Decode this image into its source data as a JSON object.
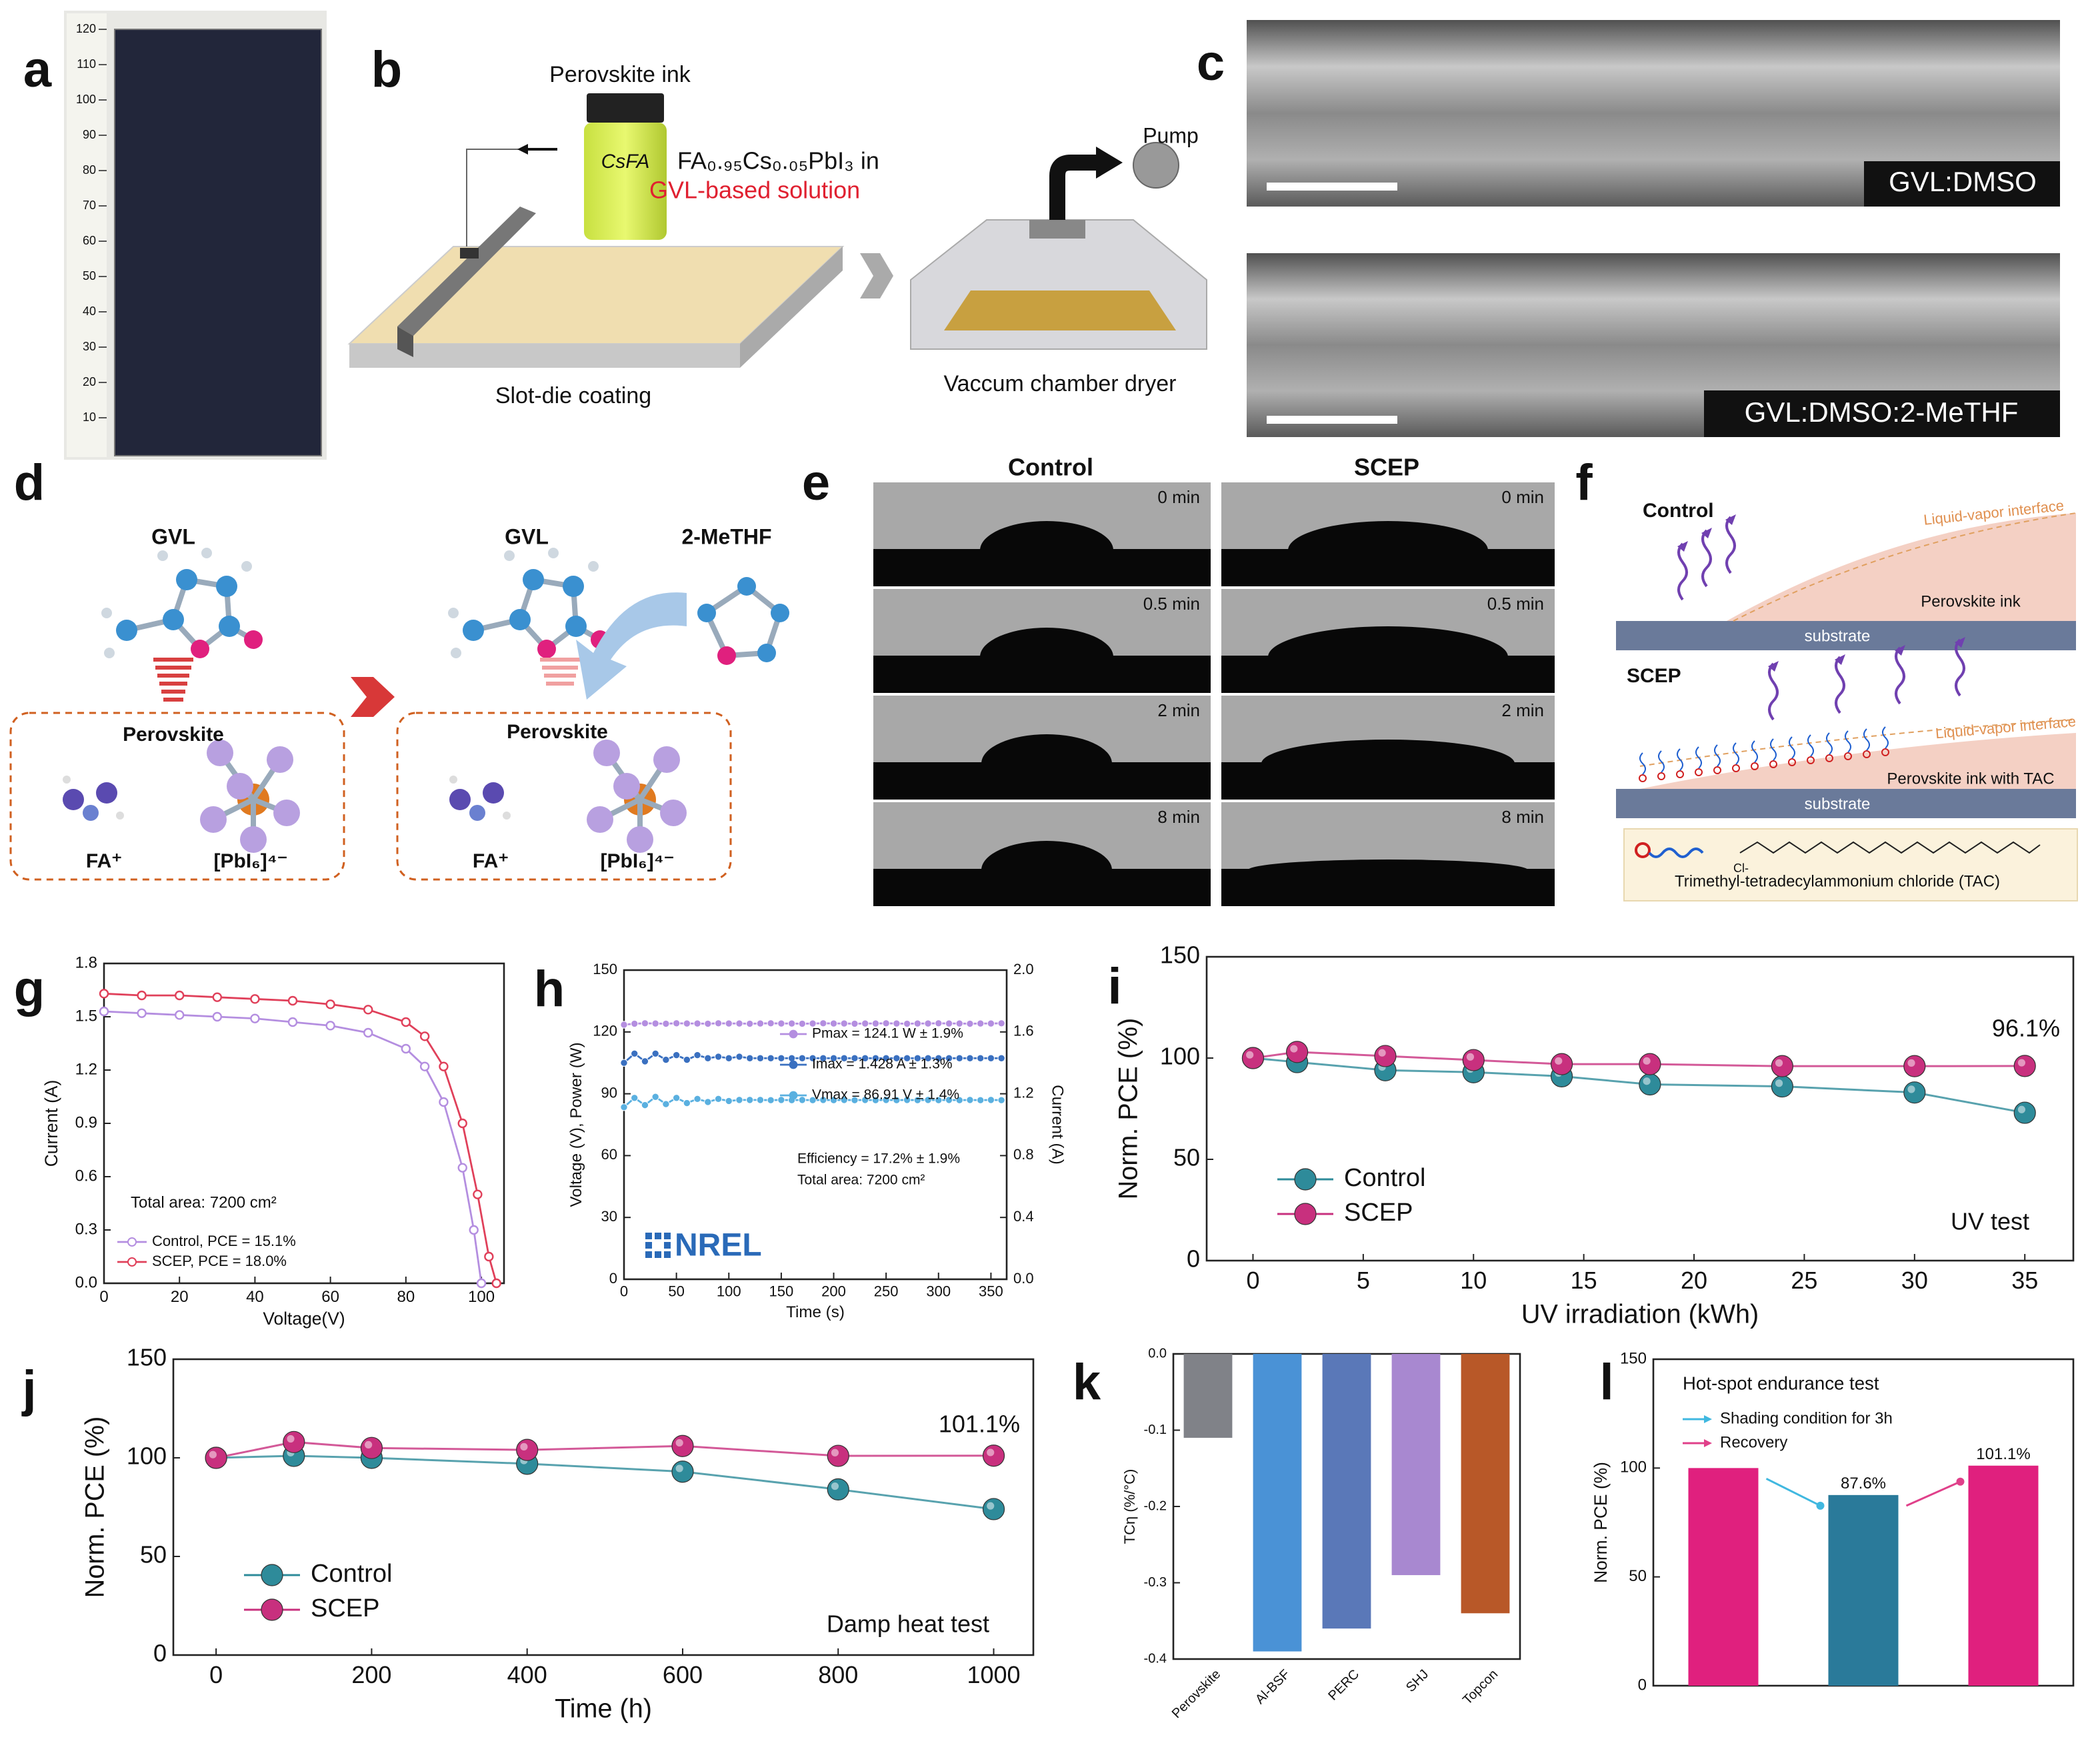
{
  "panel_labels": [
    "a",
    "b",
    "c",
    "d",
    "e",
    "f",
    "g",
    "h",
    "i",
    "j",
    "k",
    "l"
  ],
  "panel_a": {
    "ruler": [
      120,
      110,
      100,
      90,
      80,
      70,
      60,
      50,
      40,
      30,
      20,
      10
    ]
  },
  "panel_b": {
    "ink": "Perovskite ink",
    "vial": "CsFA",
    "formula": "FA₀.₉₅Cs₀.₀₅PbI₃ in",
    "solution": "GVL-based solution",
    "pump": "Pump",
    "coating": "Slot-die coating",
    "dryer": "Vaccum chamber dryer"
  },
  "panel_c": {
    "top": "GVL:DMSO",
    "bottom": "GVL:DMSO:2-MeTHF"
  },
  "panel_d": {
    "left_solvent": "GVL",
    "right_solvent": "GVL",
    "additive": "2-MeTHF",
    "box_title": "Perovskite",
    "cation": "FA⁺",
    "anion": "[PbI₆]⁴⁻"
  },
  "panel_e": {
    "columns": [
      "Control",
      "SCEP"
    ],
    "times": [
      "0 min",
      "0.5 min",
      "2 min",
      "8 min"
    ]
  },
  "panel_f": {
    "control": "Control",
    "scep": "SCEP",
    "interface": "Liquid-vapor interface",
    "ink": "Perovskite ink",
    "ink_tac": "Perovskite ink with TAC",
    "substrate": "substrate",
    "chloride": "Cl-",
    "tac": "Trimethyl-tetradecylammonium chloride (TAC)"
  },
  "chart_data": [
    {
      "type": "line",
      "xlabel": "Voltage(V)",
      "ylabel": "Current (A)",
      "xlim": [
        0,
        106
      ],
      "xticks": [
        0,
        20,
        40,
        60,
        80,
        100
      ],
      "ylim": [
        0,
        1.8
      ],
      "yticks": [
        {
          "value": 0,
          "label": "0.0"
        },
        0.3,
        0.6,
        0.9,
        1.2,
        1.5,
        1.8
      ],
      "annotation": "Total area: 7200 cm²",
      "markers": "hollow",
      "series": [
        {
          "name": "Control, PCE = 15.1%",
          "color": "#b48ee0",
          "x": [
            0,
            10,
            20,
            30,
            40,
            50,
            60,
            70,
            80,
            85,
            90,
            95,
            98,
            100
          ],
          "values": [
            1.53,
            1.52,
            1.51,
            1.5,
            1.49,
            1.47,
            1.45,
            1.41,
            1.32,
            1.22,
            1.02,
            0.65,
            0.3,
            0
          ]
        },
        {
          "name": "SCEP, PCE = 18.0%",
          "color": "#e0405a",
          "x": [
            0,
            10,
            20,
            30,
            40,
            50,
            60,
            70,
            80,
            85,
            90,
            95,
            99,
            102,
            104
          ],
          "values": [
            1.63,
            1.62,
            1.62,
            1.61,
            1.6,
            1.59,
            1.57,
            1.54,
            1.47,
            1.39,
            1.22,
            0.9,
            0.5,
            0.15,
            0
          ]
        }
      ]
    },
    {
      "type": "line",
      "xlabel": "Time (s)",
      "ylabel": "Voltage (V), Power (W)",
      "y2label": "Current (A)",
      "x": [
        0,
        10,
        20,
        30,
        40,
        50,
        60,
        70,
        80,
        90,
        100,
        110,
        120,
        130,
        140,
        150,
        160,
        170,
        180,
        190,
        200,
        210,
        220,
        230,
        240,
        250,
        260,
        270,
        280,
        290,
        300,
        310,
        320,
        330,
        340,
        350,
        360
      ],
      "xlim": [
        0,
        365
      ],
      "xticks": [
        0,
        50,
        100,
        150,
        200,
        250,
        300,
        350
      ],
      "ylim": [
        0,
        150
      ],
      "yticks": [
        0,
        30,
        60,
        90,
        120,
        150
      ],
      "y2lim": [
        0,
        2
      ],
      "y2ticks": [
        {
          "value": 0,
          "label": "0.0"
        },
        0.4,
        0.8,
        1.2,
        1.6,
        {
          "value": 2,
          "label": "2.0"
        }
      ],
      "annotations": [
        "Efficiency = 17.2%  ± 1.9%",
        "Total area: 7200 cm²"
      ],
      "logo": "NREL",
      "series": [
        {
          "name": "Pmax = 124.1 W  ± 1.9%",
          "color": "#b48ee0",
          "values": [
            123.5,
            124.0,
            124.2,
            124.1,
            124.0,
            124.2,
            124.1,
            124.1,
            124.0,
            124.2,
            124.1,
            124.1,
            124.0,
            124.1,
            124.2,
            124.1,
            124.1,
            124.0,
            124.1,
            124.2,
            124.1,
            124.1,
            124.0,
            124.1,
            124.1,
            124.2,
            124.1,
            124.0,
            124.1,
            124.1,
            124.2,
            124.1,
            124.1,
            124.0,
            124.1,
            124.1,
            124.2
          ]
        },
        {
          "name": "Imax = 1.428 A  ± 1.3%",
          "color": "#3a70c0",
          "axis": "y2",
          "values": [
            1.4,
            1.46,
            1.41,
            1.46,
            1.42,
            1.45,
            1.42,
            1.45,
            1.43,
            1.44,
            1.43,
            1.44,
            1.43,
            1.43,
            1.43,
            1.43,
            1.43,
            1.43,
            1.43,
            1.43,
            1.43,
            1.43,
            1.43,
            1.43,
            1.43,
            1.43,
            1.43,
            1.43,
            1.43,
            1.43,
            1.43,
            1.43,
            1.43,
            1.43,
            1.43,
            1.43,
            1.43
          ]
        },
        {
          "name": "Vmax = 86.91 V  ± 1.4%",
          "color": "#5ab0e0",
          "values": [
            83.5,
            88.0,
            84.5,
            88.5,
            85.0,
            88.0,
            85.5,
            87.5,
            86.0,
            87.5,
            86.5,
            87.0,
            87.0,
            87.0,
            86.9,
            87.0,
            86.9,
            87.0,
            86.9,
            87.0,
            86.9,
            87.0,
            86.9,
            87.0,
            86.9,
            87.0,
            86.9,
            87.0,
            86.9,
            87.0,
            86.9,
            87.0,
            86.9,
            87.0,
            86.9,
            87.0,
            86.9
          ]
        }
      ]
    },
    {
      "type": "line",
      "xlabel": "UV irradiation (kWh)",
      "ylabel": "Norm. PCE (%)",
      "x": [
        0,
        2,
        6,
        10,
        14,
        18,
        24,
        30,
        35
      ],
      "xlim": [
        -2.1,
        37.2
      ],
      "xticks": [
        0,
        5,
        10,
        15,
        20,
        25,
        30,
        35
      ],
      "ylim": [
        0,
        150
      ],
      "yticks": [
        0,
        50,
        100,
        150
      ],
      "markers": "sphere",
      "end_label": "96.1%",
      "test_label": "UV test",
      "series": [
        {
          "name": "Control",
          "color": "#2e8b9a",
          "values": [
            100,
            98,
            94,
            93,
            91,
            87,
            86,
            83,
            73
          ]
        },
        {
          "name": "SCEP",
          "color": "#c8307e",
          "values": [
            100,
            103,
            101,
            99,
            97,
            97,
            96,
            96,
            96.1
          ]
        }
      ]
    },
    {
      "type": "line",
      "xlabel": "Time (h)",
      "ylabel": "Norm. PCE (%)",
      "x": [
        0,
        100,
        200,
        400,
        600,
        800,
        1000
      ],
      "xlim": [
        -55,
        1051
      ],
      "xticks": [
        0,
        200,
        400,
        600,
        800,
        1000
      ],
      "ylim": [
        0,
        150
      ],
      "yticks": [
        0,
        50,
        100,
        150
      ],
      "markers": "sphere",
      "end_label": "101.1%",
      "test_label": "Damp heat test",
      "series": [
        {
          "name": "Control",
          "color": "#2e8b9a",
          "values": [
            100,
            101,
            100,
            97,
            93,
            84,
            74
          ]
        },
        {
          "name": "SCEP",
          "color": "#c8307e",
          "values": [
            100,
            108,
            105,
            104,
            106,
            101,
            101.1
          ]
        }
      ]
    },
    {
      "type": "bar",
      "ylabel": "TCη (%/°C)",
      "categories": [
        "Perovskite",
        "Al-BSF",
        "PERC",
        "SHJ",
        "Topcon"
      ],
      "values": [
        -0.11,
        -0.39,
        -0.36,
        -0.29,
        -0.34
      ],
      "colors": [
        "#808288",
        "#4a92d6",
        "#5a78b8",
        "#a888d0",
        "#b85828"
      ],
      "ylim": [
        -0.4,
        0
      ],
      "yticks": [
        {
          "value": 0,
          "label": "0.0"
        },
        -0.1,
        -0.2,
        -0.3,
        -0.4
      ]
    },
    {
      "type": "bar",
      "title": "Hot-spot endurance test",
      "ylabel": "Norm. PCE (%)",
      "values": [
        100,
        87.6,
        101.1
      ],
      "value_labels": [
        null,
        "87.6%",
        "101.1%"
      ],
      "colors": [
        "#e0207e",
        "#2a7a9a",
        "#e0207e"
      ],
      "ylim": [
        0,
        150
      ],
      "yticks": [
        0,
        50,
        100,
        150
      ],
      "legend": [
        {
          "name": "Shading condition for 3h",
          "color": "#40b8e0"
        },
        {
          "name": "Recovery",
          "color": "#e0408a"
        }
      ]
    }
  ]
}
